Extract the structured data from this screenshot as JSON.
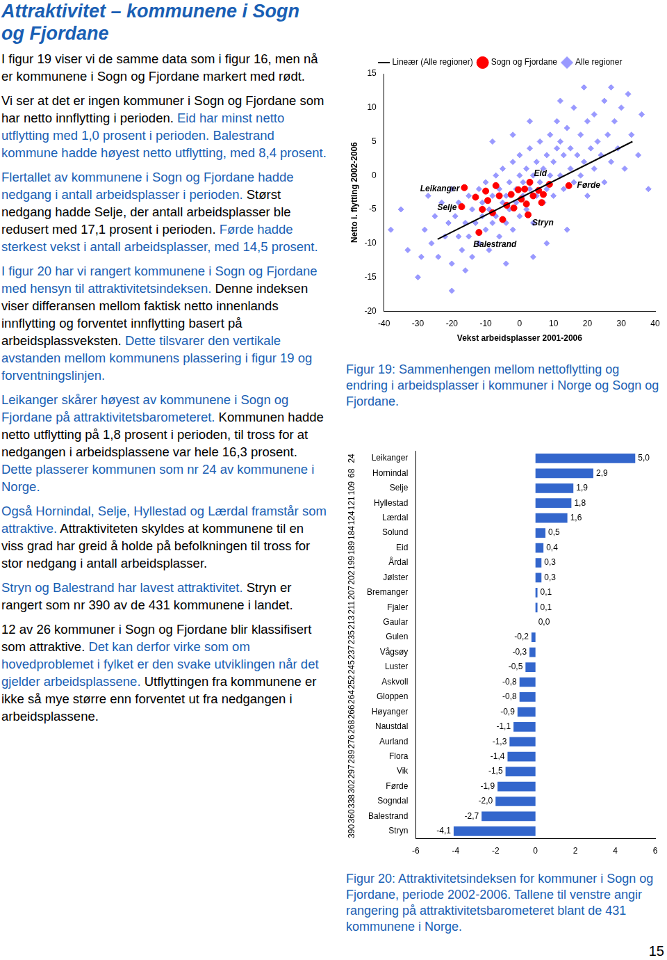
{
  "document": {
    "title": "Attraktivitet – kommunene i Sogn og Fjordane",
    "paragraphs": [
      [
        {
          "text": "I figur 19 viser vi de samme data som i figur 16, men nå er kommunene i Sogn og Fjordane markert med rødt.",
          "color": "#000000"
        }
      ],
      [
        {
          "text": "Vi ser at det er ingen kommuner i Sogn og Fjordane som har netto innflytting i perioden. ",
          "color": "#000000"
        },
        {
          "text": "Eid har minst netto utflytting med 1,0 prosent i perioden. Balestrand kommune hadde høyest netto utflytting, med 8,4 prosent.",
          "color": "#1a5fb4"
        }
      ],
      [
        {
          "text": "Flertallet av kommunene i Sogn og Fjordane hadde nedgang i antall arbeidsplasser i perioden. ",
          "color": "#1a5fb4"
        },
        {
          "text": "Størst nedgang hadde Selje, der antall arbeidsplasser ble redusert med 17,1 prosent i perioden. ",
          "color": "#000000"
        },
        {
          "text": "Førde hadde sterkest vekst i antall arbeidsplasser, med 14,5 prosent.",
          "color": "#1a5fb4"
        }
      ],
      [
        {
          "text": "I figur 20 har vi rangert kommunene i Sogn og Fjordane med hensyn til attraktivitetsindeksen. ",
          "color": "#1a5fb4"
        },
        {
          "text": "Denne indeksen viser differansen mellom faktisk netto innenlands innflytting og forventet innflytting basert på arbeidsplassveksten. ",
          "color": "#000000"
        },
        {
          "text": "Dette tilsvarer den vertikale avstanden mellom kommunens plassering i figur 19 og forventningslinjen.",
          "color": "#1a5fb4"
        }
      ],
      [
        {
          "text": "Leikanger skårer høyest av kommunene i Sogn og Fjordane på attraktivitetsbarometeret. ",
          "color": "#1a5fb4"
        },
        {
          "text": "Kommunen hadde netto utflytting på 1,8 prosent i perioden, til tross for at nedgangen i arbeidsplassene var hele 16,3 prosent. ",
          "color": "#000000"
        },
        {
          "text": "Dette plasserer kommunen som nr 24 av kommunene i Norge.",
          "color": "#1a5fb4"
        }
      ],
      [
        {
          "text": "Også Hornindal, Selje, Hyllestad og Lærdal framstår som attraktive. ",
          "color": "#1a5fb4"
        },
        {
          "text": "Attraktiviteten skyldes at kommunene til en viss grad har greid å holde på befolkningen til tross for stor nedgang i antall arbeidsplasser.",
          "color": "#000000"
        }
      ],
      [
        {
          "text": "Stryn og Balestrand har lavest attraktivitet. ",
          "color": "#1a5fb4"
        },
        {
          "text": "Stryn er rangert som nr 390 av de 431 kommunene i landet.",
          "color": "#000000"
        }
      ],
      [
        {
          "text": "12 av 26 kommuner i Sogn og Fjordane blir klassifisert som attraktive. ",
          "color": "#000000"
        },
        {
          "text": "Det kan derfor virke som om hovedproblemet i fylket er den svake utviklingen når det gjelder arbeidsplassene. ",
          "color": "#1a5fb4"
        },
        {
          "text": "Utflyttingen fra kommunene er ikke så mye større enn forventet ut fra nedgangen i arbeidsplassene.",
          "color": "#000000"
        }
      ]
    ],
    "page_number": 15
  },
  "chart_data": [
    {
      "type": "scatter",
      "caption": "Figur 19: Sammenhengen mellom nettoflytting og endring i arbeidsplasser i kommuner i Norge og Sogn og Fjordane.",
      "x_label": "Vekst arbeidsplasser 2001-2006",
      "y_label": "Netto i. flytting 2002-2006",
      "xlim": [
        -40,
        40
      ],
      "xticks": [
        -40,
        -30,
        -20,
        -10,
        0,
        10,
        20,
        30,
        40
      ],
      "ylim": [
        -20,
        15
      ],
      "yticks": [
        -20,
        -15,
        -10,
        -5,
        0,
        5,
        10,
        15
      ],
      "grid": false,
      "legend": "top",
      "series": [
        {
          "name": "Alle regioner",
          "type": "scatter",
          "color": "#9999ff",
          "marker": "diamond",
          "values": [
            [
              -38,
              -8
            ],
            [
              -33,
              -11
            ],
            [
              -30,
              -15
            ],
            [
              -28,
              -8
            ],
            [
              -27,
              -3
            ],
            [
              -26,
              -10
            ],
            [
              -25,
              -6
            ],
            [
              -24,
              -12
            ],
            [
              -23,
              -4
            ],
            [
              -22,
              -9
            ],
            [
              -21,
              -7
            ],
            [
              -20,
              -13
            ],
            [
              -20,
              -2
            ],
            [
              -19,
              -6
            ],
            [
              -18,
              -9
            ],
            [
              -18,
              -4
            ],
            [
              -17,
              -11
            ],
            [
              -16,
              -7
            ],
            [
              -15,
              -3
            ],
            [
              -15,
              -9
            ],
            [
              -14,
              -5
            ],
            [
              -14,
              -12
            ],
            [
              -13,
              -7
            ],
            [
              -12,
              -2
            ],
            [
              -12,
              -10
            ],
            [
              -11,
              -4
            ],
            [
              -11,
              -6
            ],
            [
              -10,
              -8
            ],
            [
              -10,
              -1
            ],
            [
              -9,
              -5
            ],
            [
              -9,
              -11
            ],
            [
              -8,
              -3
            ],
            [
              -8,
              -7
            ],
            [
              -7,
              0
            ],
            [
              -7,
              -6
            ],
            [
              -6,
              -9
            ],
            [
              -6,
              -2
            ],
            [
              -5,
              -4
            ],
            [
              -5,
              1
            ],
            [
              -4,
              -7
            ],
            [
              -4,
              -3
            ],
            [
              -3,
              -1
            ],
            [
              -3,
              -5
            ],
            [
              -2,
              2
            ],
            [
              -2,
              -8
            ],
            [
              -1,
              -2
            ],
            [
              -1,
              -4
            ],
            [
              0,
              0
            ],
            [
              0,
              -6
            ],
            [
              0,
              3
            ],
            [
              1,
              -1
            ],
            [
              1,
              -3
            ],
            [
              2,
              1
            ],
            [
              2,
              -5
            ],
            [
              3,
              4
            ],
            [
              3,
              -2
            ],
            [
              4,
              0
            ],
            [
              4,
              -7
            ],
            [
              5,
              2
            ],
            [
              5,
              -3
            ],
            [
              6,
              5
            ],
            [
              6,
              -1
            ],
            [
              7,
              1
            ],
            [
              7,
              -4
            ],
            [
              8,
              3
            ],
            [
              8,
              -2
            ],
            [
              9,
              6
            ],
            [
              9,
              0
            ],
            [
              10,
              2
            ],
            [
              10,
              -3
            ],
            [
              11,
              4
            ],
            [
              11,
              8
            ],
            [
              12,
              0
            ],
            [
              12,
              5
            ],
            [
              13,
              -2
            ],
            [
              13,
              3
            ],
            [
              14,
              7
            ],
            [
              15,
              1
            ],
            [
              15,
              4
            ],
            [
              16,
              10
            ],
            [
              16,
              -1
            ],
            [
              17,
              3
            ],
            [
              18,
              6
            ],
            [
              18,
              0
            ],
            [
              19,
              2
            ],
            [
              20,
              8
            ],
            [
              20,
              -3
            ],
            [
              21,
              4
            ],
            [
              22,
              1
            ],
            [
              22,
              9
            ],
            [
              23,
              5
            ],
            [
              24,
              3
            ],
            [
              25,
              11
            ],
            [
              25,
              -1
            ],
            [
              26,
              6
            ],
            [
              27,
              2
            ],
            [
              28,
              8
            ],
            [
              29,
              4
            ],
            [
              30,
              10
            ],
            [
              31,
              1
            ],
            [
              32,
              12
            ],
            [
              33,
              6
            ],
            [
              35,
              3
            ],
            [
              36,
              9
            ],
            [
              38,
              -2
            ],
            [
              -35,
              -5
            ],
            [
              -29,
              -12
            ],
            [
              -16,
              -14
            ],
            [
              -4,
              -13
            ],
            [
              8,
              -10
            ],
            [
              3,
              8
            ],
            [
              -2,
              6
            ],
            [
              12,
              11
            ],
            [
              19,
              13
            ],
            [
              -8,
              5
            ],
            [
              27,
              13
            ],
            [
              14,
              -8
            ],
            [
              -20,
              -17
            ],
            [
              4,
              -12
            ]
          ]
        },
        {
          "name": "Sogn og Fjordane",
          "type": "scatter",
          "color": "#ff0000",
          "marker": "circle",
          "values": [
            [
              -16.3,
              -1.8
            ],
            [
              -17.1,
              -4.6
            ],
            [
              3,
              -1.0
            ],
            [
              14.5,
              -1.5
            ],
            [
              2.5,
              -5.8
            ],
            [
              -12,
              -8.4
            ],
            [
              -10,
              -2.3
            ],
            [
              -9.4,
              -3.7
            ],
            [
              -3.8,
              -4.4
            ],
            [
              -1.7,
              -4.8
            ],
            [
              -0.4,
              -2.1
            ],
            [
              5.6,
              -2.2
            ],
            [
              8.8,
              -1.3
            ],
            [
              -6,
              -3
            ],
            [
              0.5,
              -3.5
            ],
            [
              -8,
              -5.5
            ],
            [
              -2.5,
              -2.8
            ],
            [
              4,
              -3
            ],
            [
              6.5,
              -4
            ],
            [
              -5,
              -6.5
            ],
            [
              -11,
              -5
            ],
            [
              1.5,
              -2
            ],
            [
              -7,
              -1.5
            ],
            [
              2,
              -4.2
            ],
            [
              -13,
              -3.2
            ],
            [
              7,
              -2.8
            ]
          ],
          "labels": [
            "Leikanger",
            "Selje",
            "Eid",
            "Førde",
            "Stryn",
            "Balestrand",
            null,
            null,
            null,
            null,
            null,
            null,
            null,
            null,
            null,
            null,
            null,
            null,
            null,
            null,
            null,
            null,
            null,
            null,
            null,
            null
          ]
        },
        {
          "name": "Lineær (Alle regioner)",
          "type": "line",
          "color": "#000000",
          "line_style": "solid",
          "values": [
            [
              -24.2,
              -9.4
            ],
            [
              33.3,
              5.0
            ]
          ]
        }
      ]
    },
    {
      "type": "bar",
      "orientation": "horizontal",
      "caption": "Figur 20: Attraktivitetsindeksen for kommuner i Sogn og Fjordane, periode 2002-2006. Tallene til venstre angir rangering på attraktivitetsbarometeret blant de 431 kommunene i Norge.",
      "categories": [
        "Leikanger",
        "Hornindal",
        "Selje",
        "Hyllestad",
        "Lærdal",
        "Solund",
        "Eid",
        "Årdal",
        "Jølster",
        "Bremanger",
        "Fjaler",
        "Gaular",
        "Gulen",
        "Vågsøy",
        "Luster",
        "Askvoll",
        "Gloppen",
        "Høyanger",
        "Naustdal",
        "Aurland",
        "Flora",
        "Vik",
        "Førde",
        "Sogndal",
        "Balestrand",
        "Stryn"
      ],
      "values": [
        5.0,
        2.9,
        1.9,
        1.8,
        1.6,
        0.5,
        0.4,
        0.3,
        0.3,
        0.1,
        0.1,
        0.0,
        -0.2,
        -0.3,
        -0.5,
        -0.8,
        -0.8,
        -0.9,
        -1.1,
        -1.3,
        -1.4,
        -1.5,
        -1.9,
        -2.0,
        -2.7,
        -4.1
      ],
      "value_labels": [
        "5,0",
        "2,9",
        "1,9",
        "1,8",
        "1,6",
        "0,5",
        "0,4",
        "0,3",
        "0,3",
        "0,1",
        "0,1",
        "0,0",
        "-0,2",
        "-0,3",
        "-0,5",
        "-0,8",
        "-0,8",
        "-0,9",
        "-1,1",
        "-1,3",
        "-1,4",
        "-1,5",
        "-1,9",
        "-2,0",
        "-2,7",
        "-4,1"
      ],
      "ranks": [
        24,
        68,
        109,
        121,
        124,
        184,
        189,
        199,
        202,
        207,
        211,
        213,
        235,
        237,
        245,
        252,
        264,
        266,
        268,
        276,
        289,
        297,
        302,
        338,
        360,
        390
      ],
      "color": "#3366cc",
      "xlim": [
        -6,
        6
      ],
      "xticks": [
        -6,
        -4,
        -2,
        0,
        2,
        4,
        6
      ],
      "grid": false,
      "data_labels": true
    }
  ]
}
